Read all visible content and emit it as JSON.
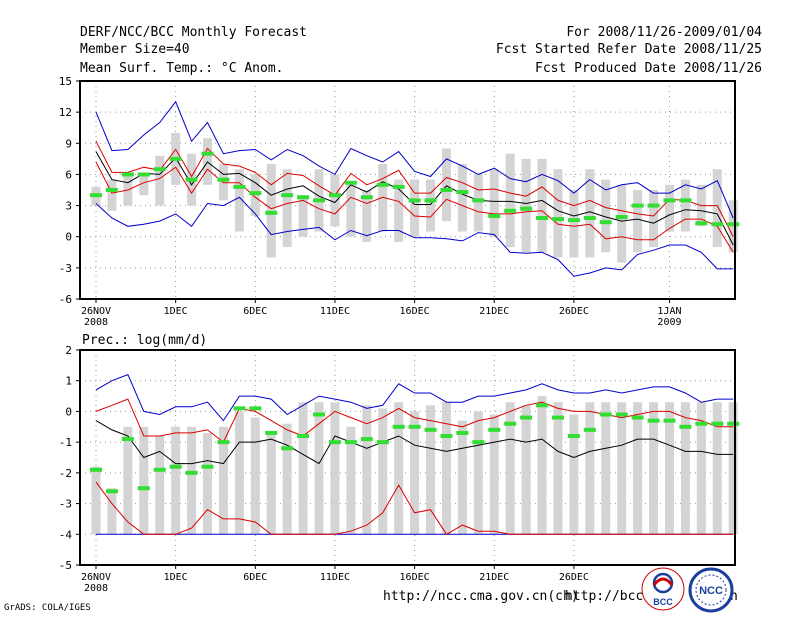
{
  "header": {
    "title": "DERF/NCC/BCC Monthly Forecast",
    "member_size": "Member Size=40",
    "variable": "Mean Surf. Temp.: °C Anom.",
    "period": "For 2008/11/26-2009/01/04",
    "refer_date": "Fcst Started Refer Date 2008/11/25",
    "produced_date": "Fcst Produced Date 2008/11/26"
  },
  "footer": {
    "url1": "http://ncc.cma.gov.cn(ch)",
    "url2": "http://bcc.c",
    "url2_tail": "n",
    "grads": "GrADS: COLA/IGES"
  },
  "logos": {
    "bcc": "BCC",
    "ncc": "NCC"
  },
  "colors": {
    "max_line": "#0000cc",
    "pct_line": "#dd0000",
    "mean_line": "#000000",
    "box": "#d4d4d4",
    "marker": "#33dd33"
  },
  "chart_data": [
    {
      "type": "box-ensemble",
      "title": "Mean Surf. Temp.: °C Anom.",
      "ylim": [
        -6,
        15
      ],
      "yticks": [
        "15",
        "12",
        "9",
        "6",
        "3",
        "0",
        "-3",
        "-6"
      ],
      "ytick_values": [
        15,
        12,
        9,
        6,
        3,
        0,
        -3,
        -6
      ],
      "xlabels": [
        {
          "day": 0,
          "text": "26NOV",
          "sub": "2008"
        },
        {
          "day": 5,
          "text": "1DEC"
        },
        {
          "day": 10,
          "text": "6DEC"
        },
        {
          "day": 15,
          "text": "11DEC"
        },
        {
          "day": 20,
          "text": "16DEC"
        },
        {
          "day": 25,
          "text": "21DEC"
        },
        {
          "day": 30,
          "text": "26DEC"
        },
        {
          "day": 36,
          "text": "1JAN",
          "sub": "2009"
        }
      ],
      "series": {
        "max": [
          12,
          8.3,
          8.4,
          9.8,
          11,
          13,
          9.2,
          11,
          8,
          8.3,
          8.4,
          7.4,
          8.4,
          7.8,
          6.8,
          6,
          8.5,
          7.8,
          7.2,
          8.2,
          6.3,
          5.8,
          7.5,
          6.8,
          6,
          6.6,
          5.6,
          5.3,
          6,
          5.4,
          4.2,
          5.5,
          4.5,
          5,
          5.2,
          4.2,
          4.2,
          5,
          4.6,
          5.4,
          1.8
        ],
        "p_high": [
          9.2,
          6.2,
          6.2,
          6.7,
          6.4,
          8.4,
          5.8,
          8.5,
          7,
          6.8,
          6.2,
          5,
          6.1,
          5.9,
          4.9,
          4,
          6.1,
          5,
          5.6,
          6.4,
          4.2,
          4.2,
          5.7,
          5.2,
          4.5,
          4.6,
          4.2,
          3.9,
          4.8,
          3.5,
          3,
          3.5,
          2.8,
          2.5,
          2.2,
          2,
          3.6,
          3.5,
          3,
          3,
          0
        ],
        "mean": [
          8.2,
          5.5,
          5.2,
          6.1,
          6,
          7.6,
          5,
          7.2,
          6,
          6.1,
          5.2,
          4,
          4.6,
          4.9,
          3.9,
          3.3,
          5,
          4.3,
          5.3,
          4.6,
          3.1,
          3.1,
          4.9,
          4.1,
          3.5,
          3.4,
          3.4,
          3.2,
          3.5,
          2.5,
          2,
          2.4,
          1.9,
          1.5,
          1.7,
          1.3,
          2.1,
          2.6,
          2.5,
          2.2,
          -0.8
        ],
        "p_low": [
          7.2,
          4.2,
          4.5,
          5.2,
          5.6,
          6.7,
          4.2,
          6.5,
          5.2,
          5.2,
          3.8,
          2.7,
          3.2,
          3.5,
          2.7,
          2.2,
          3.8,
          3.2,
          3.8,
          3.4,
          2,
          1.9,
          3.6,
          3,
          2.4,
          2.2,
          2.2,
          2.4,
          2.5,
          1.2,
          1,
          1.2,
          -0.2,
          0,
          -0.3,
          -0.3,
          0.8,
          1.7,
          1.7,
          1,
          -1.5
        ],
        "min": [
          3.2,
          1.8,
          1,
          1.2,
          1.5,
          2.2,
          1,
          3.2,
          3,
          3.8,
          2.2,
          0.2,
          0.5,
          0.7,
          0.9,
          -0.3,
          0.6,
          0.1,
          0.6,
          0.6,
          -0.1,
          -0.1,
          -0.2,
          -0.4,
          0.4,
          0.2,
          -1.5,
          -1.6,
          -1.5,
          -2.2,
          -3.8,
          -3.5,
          -3,
          -3.2,
          -1.7,
          -1.3,
          -0.8,
          -0.8,
          -1.5,
          -3.1,
          -3.1
        ],
        "box_top": [
          4.8,
          5.5,
          6,
          6,
          7.8,
          10,
          8,
          9.5,
          7,
          6.5,
          6,
          7,
          6.5,
          4,
          6.5,
          6,
          5,
          4.5,
          7,
          5.5,
          5.5,
          5.5,
          8.5,
          7,
          6,
          6.5,
          8,
          7.5,
          7.5,
          6.5,
          4.5,
          6.5,
          5.5,
          5,
          4.5,
          4.5,
          5,
          5.5,
          5,
          6.5,
          3.5
        ],
        "box_bot": [
          3,
          2.5,
          3,
          4,
          3,
          5,
          3,
          5,
          3.5,
          0.5,
          2,
          -2,
          -1,
          0,
          0.5,
          1,
          0,
          -0.5,
          0.5,
          -0.5,
          0,
          0.5,
          1.5,
          0.5,
          0.5,
          0,
          -1,
          -1.5,
          -1.5,
          -2,
          -2,
          -2,
          -1.5,
          -2.5,
          -1.5,
          -1,
          0.5,
          0.5,
          1,
          -1,
          -1.5
        ],
        "marker": [
          4,
          4.5,
          6,
          6,
          6.5,
          7.5,
          5.5,
          8,
          5.5,
          4.8,
          4.2,
          2.3,
          4,
          3.8,
          3.5,
          4,
          5.2,
          3.8,
          5,
          4.8,
          3.5,
          3.5,
          4.5,
          4.3,
          3.5,
          2,
          2.5,
          2.7,
          1.8,
          1.7,
          1.6,
          1.8,
          1.4,
          1.9,
          3,
          3,
          3.5,
          3.5,
          1.3,
          1.2,
          1.2
        ]
      }
    },
    {
      "type": "box-ensemble",
      "title": "Prec.: log(mm/d)",
      "ylim": [
        -5,
        2
      ],
      "yticks": [
        "2",
        "1",
        "0",
        "-1",
        "-2",
        "-3",
        "-4",
        "-5"
      ],
      "ytick_values": [
        2,
        1,
        0,
        -1,
        -2,
        -3,
        -4,
        -5
      ],
      "xlabels": [
        {
          "day": 0,
          "text": "26NOV",
          "sub": "2008"
        },
        {
          "day": 5,
          "text": "1DEC"
        },
        {
          "day": 10,
          "text": "6DEC"
        },
        {
          "day": 15,
          "text": "11DEC"
        },
        {
          "day": 20,
          "text": "16DEC"
        },
        {
          "day": 25,
          "text": "21DEC"
        },
        {
          "day": 30,
          "text": "26DEC"
        }
      ],
      "series": {
        "max": [
          0.7,
          1,
          1.2,
          0,
          -0.1,
          0.15,
          0.15,
          0.3,
          -0.3,
          0.5,
          0.5,
          0.4,
          -0.1,
          0.2,
          0.5,
          0.4,
          0.3,
          0.1,
          0.2,
          0.9,
          0.6,
          0.6,
          0.3,
          0.3,
          0.5,
          0.5,
          0.6,
          0.7,
          0.9,
          0.7,
          0.6,
          0.6,
          0.7,
          0.6,
          0.7,
          0.8,
          0.8,
          0.6,
          0.3,
          0.4,
          0.4
        ],
        "p_high": [
          0,
          0.2,
          0.4,
          -0.8,
          -0.8,
          -0.7,
          -0.7,
          -0.6,
          -1,
          0.1,
          0,
          -0.3,
          -0.6,
          -0.8,
          -0.4,
          0,
          -0.2,
          -0.4,
          -0.2,
          0.1,
          -0.2,
          -0.3,
          -0.4,
          -0.5,
          -0.3,
          -0.2,
          0,
          0.2,
          0.3,
          0.1,
          0,
          0,
          -0.1,
          -0.2,
          -0.1,
          0,
          0,
          -0.2,
          -0.3,
          -0.5,
          -0.5
        ],
        "mean": [
          -0.3,
          -0.6,
          -0.8,
          -1.5,
          -1.3,
          -1.7,
          -1.7,
          -1.6,
          -1.7,
          -1,
          -1,
          -0.9,
          -1.1,
          -1.4,
          -1.7,
          -0.8,
          -1,
          -1.2,
          -1,
          -0.8,
          -1.1,
          -1.2,
          -1.3,
          -1.2,
          -1.1,
          -1,
          -0.9,
          -1,
          -0.9,
          -1.3,
          -1.5,
          -1.3,
          -1.2,
          -1.1,
          -0.9,
          -0.9,
          -1.1,
          -1.3,
          -1.3,
          -1.4,
          -1.4
        ],
        "p_low": [
          -2.3,
          -3,
          -3.6,
          -4,
          -4,
          -4,
          -3.8,
          -3.2,
          -3.5,
          -3.5,
          -3.6,
          -4,
          -4,
          -4,
          -4,
          -4,
          -3.9,
          -3.7,
          -3.3,
          -2.4,
          -3.3,
          -3.2,
          -4,
          -3.7,
          -3.9,
          -3.9,
          -4,
          -4,
          -4,
          -4,
          -4,
          -4,
          -4,
          -4,
          -4,
          -4,
          -4,
          -4,
          -4,
          -4,
          -4
        ],
        "min": [
          -4,
          -4,
          -4,
          -4,
          -4,
          -4,
          -4,
          -4,
          -4,
          -4,
          -4,
          -4,
          -4,
          -4,
          -4,
          -4,
          -4,
          -4,
          -4,
          -4,
          -4,
          -4,
          -4,
          -4,
          -4,
          -4,
          -4,
          -4,
          -4,
          -4,
          -4,
          -4,
          -4,
          -4,
          -4,
          -4,
          -4,
          -4,
          -4,
          -4,
          -4
        ],
        "box_top": [
          -1.8,
          -2.5,
          -0.5,
          -0.5,
          -0.8,
          -0.5,
          -0.5,
          -0.7,
          -0.5,
          0,
          -0.2,
          -0.7,
          -0.4,
          0.3,
          0.3,
          0.3,
          -0.5,
          0.2,
          0.1,
          0.3,
          0,
          0.2,
          0.3,
          -0.3,
          0,
          -0.1,
          0.3,
          0.2,
          0.5,
          0.3,
          -0.1,
          0.3,
          0.3,
          0.3,
          0.3,
          0.3,
          0.3,
          0.3,
          0.3,
          0.3,
          0.3
        ],
        "box_bot": [
          -4,
          -4,
          -4,
          -4,
          -4,
          -4,
          -4,
          -4,
          -4,
          -4,
          -4,
          -4,
          -4,
          -4,
          -4,
          -4,
          -4,
          -4,
          -4,
          -4,
          -4,
          -4,
          -4,
          -4,
          -4,
          -4,
          -4,
          -4,
          -4,
          -4,
          -4,
          -4,
          -4,
          -4,
          -4,
          -4,
          -4,
          -4,
          -4,
          -4,
          -4
        ],
        "marker": [
          -1.9,
          -2.6,
          -0.9,
          -2.5,
          -1.9,
          -1.8,
          -2,
          -1.8,
          -1,
          0.1,
          0.1,
          -0.7,
          -1.2,
          -0.8,
          -0.1,
          -1,
          -1,
          -0.9,
          -1,
          -0.5,
          -0.5,
          -0.6,
          -0.8,
          -0.7,
          -1,
          -0.6,
          -0.4,
          -0.2,
          0.2,
          -0.2,
          -0.8,
          -0.6,
          -0.1,
          -0.1,
          -0.2,
          -0.3,
          -0.3,
          -0.5,
          -0.4,
          -0.4,
          -0.4
        ]
      }
    }
  ]
}
